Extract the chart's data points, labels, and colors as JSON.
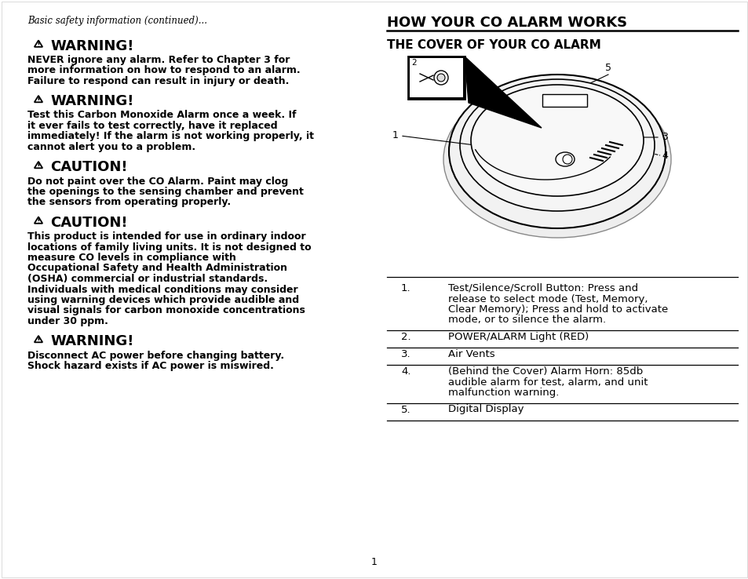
{
  "bg_color": "#ffffff",
  "page_number": "1",
  "left_column": {
    "header_italic": "Basic safety information (continued)...",
    "sections": [
      {
        "type": "WARNING",
        "body": "NEVER ignore any alarm. Refer to Chapter 3 for\nmore information on how to respond to an alarm.\nFailure to respond can result in injury or death."
      },
      {
        "type": "WARNING",
        "body": "Test this Carbon Monoxide Alarm once a week. If\nit ever fails to test correctly, have it replaced\nimmediately! If the alarm is not working properly, it\ncannot alert you to a problem."
      },
      {
        "type": "CAUTION",
        "body": "Do not paint over the CO Alarm. Paint may clog\nthe openings to the sensing chamber and prevent\nthe sensors from operating properly."
      },
      {
        "type": "CAUTION",
        "body": "This product is intended for use in ordinary indoor\nlocations of family living units. It is not designed to\nmeasure CO levels in compliance with\nOccupational Safety and Health Administration\n(OSHA) commercial or industrial standards.\nIndividuals with medical conditions may consider\nusing warning devices which provide audible and\nvisual signals for carbon monoxide concentrations\nunder 30 ppm."
      },
      {
        "type": "WARNING",
        "body": "Disconnect AC power before changing battery.\nShock hazard exists if AC power is miswired."
      }
    ]
  },
  "right_column": {
    "main_title": "HOW YOUR CO ALARM WORKS",
    "sub_title": "THE COVER OF YOUR CO ALARM",
    "table_items": [
      {
        "num": "1.",
        "text": "Test/Silence/Scroll Button: Press and\nrelease to select mode (Test, Memory,\nClear Memory); Press and hold to activate\nmode, or to silence the alarm."
      },
      {
        "num": "2.",
        "text": "POWER/ALARM Light (RED)"
      },
      {
        "num": "3.",
        "text": "Air Vents"
      },
      {
        "num": "4.",
        "text": "(Behind the Cover) Alarm Horn: 85db\naudible alarm for test, alarm, and unit\nmalfunction warning."
      },
      {
        "num": "5.",
        "text": "Digital Display"
      }
    ]
  }
}
